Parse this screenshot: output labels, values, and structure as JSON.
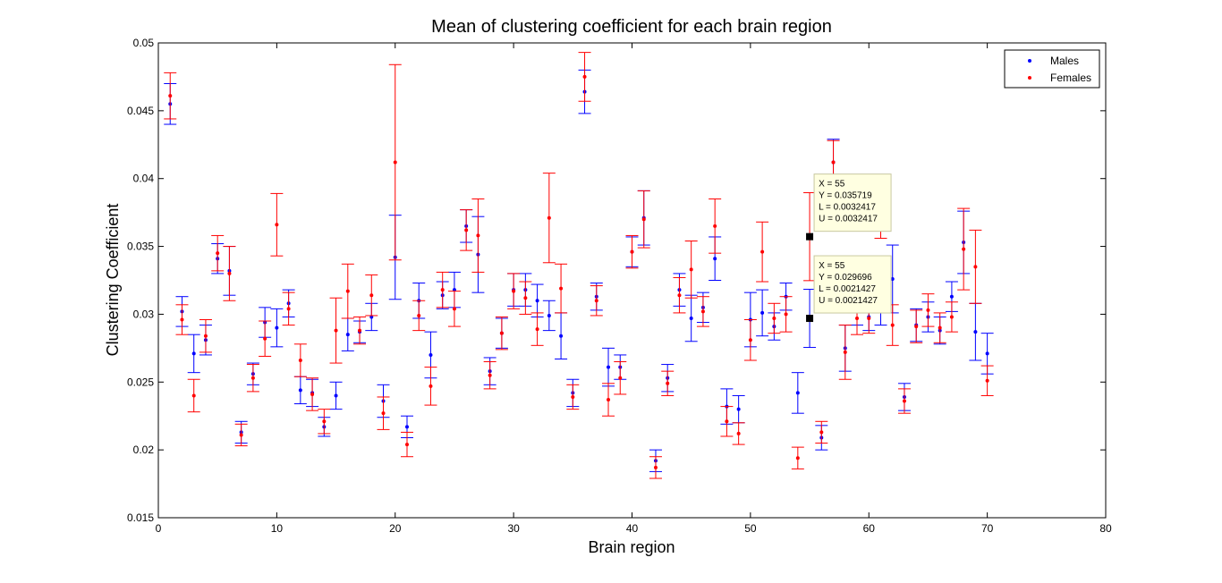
{
  "chart_data": {
    "type": "scatter",
    "title": "Mean of clustering coefficient for each brain region",
    "xlabel": "Brain region",
    "ylabel": "Clustering Coefficient",
    "xlim": [
      0,
      80
    ],
    "ylim": [
      0.015,
      0.05
    ],
    "xticks": [
      "0",
      "10",
      "20",
      "30",
      "40",
      "50",
      "60",
      "70",
      "80"
    ],
    "yticks": [
      "0.015",
      "0.02",
      "0.025",
      "0.03",
      "0.035",
      "0.04",
      "0.045",
      "0.05"
    ],
    "grid": false,
    "legend_position": "top-right",
    "series": [
      {
        "name": "Males",
        "color": "#0000ff",
        "x": [
          1,
          2,
          3,
          4,
          5,
          6,
          7,
          8,
          9,
          10,
          11,
          12,
          13,
          14,
          15,
          16,
          17,
          18,
          19,
          20,
          21,
          22,
          23,
          24,
          25,
          26,
          27,
          28,
          29,
          30,
          31,
          32,
          33,
          34,
          35,
          36,
          37,
          38,
          39,
          40,
          41,
          42,
          43,
          44,
          45,
          46,
          47,
          48,
          49,
          50,
          51,
          52,
          53,
          54,
          55,
          56,
          57,
          58,
          59,
          60,
          61,
          62,
          63,
          64,
          65,
          66,
          67,
          68,
          69,
          70
        ],
        "y": [
          0.0455,
          0.0302,
          0.0271,
          0.0281,
          0.0341,
          0.0332,
          0.0213,
          0.0256,
          0.0294,
          0.029,
          0.0308,
          0.0244,
          0.0242,
          0.0217,
          0.024,
          0.0285,
          0.0287,
          0.0298,
          0.0236,
          0.0342,
          0.0217,
          0.031,
          0.027,
          0.0314,
          0.0318,
          0.0365,
          0.0344,
          0.0258,
          0.0286,
          0.0318,
          0.0318,
          0.031,
          0.0299,
          0.0284,
          0.0242,
          0.0464,
          0.0313,
          0.0261,
          0.0261,
          0.0346,
          0.0371,
          0.0192,
          0.0253,
          0.0318,
          0.0297,
          0.0305,
          0.0341,
          0.0232,
          0.023,
          0.0296,
          0.0301,
          0.0291,
          0.0313,
          0.0242,
          0.029696,
          0.0209,
          0.0412,
          0.0275,
          0.0302,
          0.0298,
          0.0302,
          0.0326,
          0.0239,
          0.0292,
          0.0298,
          0.0288,
          0.0313,
          0.0353,
          0.0287,
          0.0271
        ],
        "err": [
          0.0015,
          0.0011,
          0.0014,
          0.0011,
          0.0011,
          0.0018,
          0.0008,
          0.0008,
          0.0011,
          0.0014,
          0.001,
          0.001,
          0.001,
          0.0007,
          0.001,
          0.0012,
          0.0008,
          0.001,
          0.0012,
          0.0031,
          0.0008,
          0.0013,
          0.0017,
          0.001,
          0.0013,
          0.0012,
          0.0028,
          0.001,
          0.0011,
          0.0012,
          0.0012,
          0.0012,
          0.0011,
          0.0017,
          0.001,
          0.0016,
          0.001,
          0.0014,
          0.0009,
          0.0011,
          0.002,
          0.0008,
          0.001,
          0.0012,
          0.0017,
          0.0011,
          0.0016,
          0.0013,
          0.001,
          0.002,
          0.0017,
          0.001,
          0.001,
          0.0015,
          0.0021427,
          0.0009,
          0.0017,
          0.0017,
          0.001,
          0.001,
          0.001,
          0.0025,
          0.001,
          0.0012,
          0.0011,
          0.001,
          0.0011,
          0.0023,
          0.0021,
          0.0015
        ]
      },
      {
        "name": "Females",
        "color": "#ff0000",
        "x": [
          1,
          2,
          3,
          4,
          5,
          6,
          7,
          8,
          9,
          10,
          11,
          12,
          13,
          14,
          15,
          16,
          17,
          18,
          19,
          20,
          21,
          22,
          23,
          24,
          25,
          26,
          27,
          28,
          29,
          30,
          31,
          32,
          33,
          34,
          35,
          36,
          37,
          38,
          39,
          40,
          41,
          42,
          43,
          44,
          45,
          46,
          47,
          48,
          49,
          50,
          51,
          52,
          53,
          54,
          55,
          56,
          57,
          58,
          59,
          60,
          61,
          62,
          63,
          64,
          65,
          66,
          67,
          68,
          69,
          70
        ],
        "y": [
          0.0461,
          0.0296,
          0.024,
          0.0284,
          0.0345,
          0.033,
          0.0211,
          0.0253,
          0.0282,
          0.0366,
          0.0304,
          0.0266,
          0.0241,
          0.0221,
          0.0288,
          0.0317,
          0.0288,
          0.0314,
          0.0227,
          0.0412,
          0.0204,
          0.0299,
          0.0247,
          0.0318,
          0.0304,
          0.0362,
          0.0358,
          0.0255,
          0.0286,
          0.0317,
          0.0312,
          0.0289,
          0.0371,
          0.0319,
          0.0239,
          0.0475,
          0.031,
          0.0237,
          0.0253,
          0.0346,
          0.037,
          0.0187,
          0.0249,
          0.0314,
          0.0333,
          0.0302,
          0.0365,
          0.0221,
          0.0212,
          0.0281,
          0.0346,
          0.0297,
          0.03,
          0.0194,
          0.035719,
          0.0213,
          0.0412,
          0.0272,
          0.0297,
          0.0297,
          0.0372,
          0.0292,
          0.0236,
          0.0291,
          0.0303,
          0.029,
          0.0298,
          0.0348,
          0.0335,
          0.0251
        ],
        "err": [
          0.0017,
          0.0011,
          0.0012,
          0.0012,
          0.0013,
          0.002,
          0.0008,
          0.001,
          0.0013,
          0.0023,
          0.0012,
          0.0012,
          0.0012,
          0.0009,
          0.0024,
          0.002,
          0.001,
          0.0015,
          0.0012,
          0.0072,
          0.0009,
          0.0011,
          0.0014,
          0.0013,
          0.0013,
          0.0015,
          0.0027,
          0.001,
          0.0012,
          0.0013,
          0.0012,
          0.0012,
          0.0033,
          0.0018,
          0.0009,
          0.0018,
          0.0011,
          0.0012,
          0.0012,
          0.0012,
          0.0021,
          0.0008,
          0.0009,
          0.0013,
          0.0021,
          0.0011,
          0.002,
          0.0011,
          0.0008,
          0.0015,
          0.0022,
          0.0011,
          0.0013,
          0.0008,
          0.0032417,
          0.0008,
          0.0016,
          0.002,
          0.0012,
          0.0011,
          0.0016,
          0.0015,
          0.0009,
          0.0012,
          0.0012,
          0.0011,
          0.0011,
          0.003,
          0.0027,
          0.0011
        ]
      }
    ],
    "datatips": [
      {
        "series": "Females",
        "lines": [
          "X = 55",
          "Y = 0.035719",
          "L = 0.0032417",
          "U = 0.0032417"
        ],
        "x": 55,
        "y": 0.035719
      },
      {
        "series": "Males",
        "lines": [
          "X = 55",
          "Y = 0.029696",
          "L = 0.0021427",
          "U = 0.0021427"
        ],
        "x": 55,
        "y": 0.029696
      }
    ]
  }
}
